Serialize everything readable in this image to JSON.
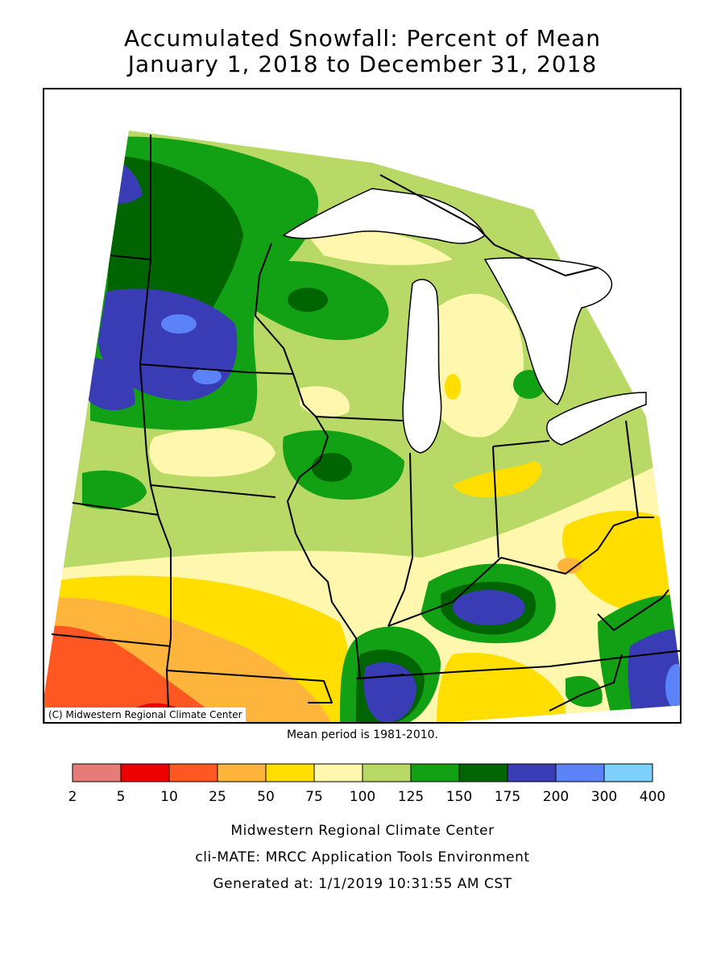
{
  "title": {
    "line1": "Accumulated Snowfall: Percent of Mean",
    "line2": "January 1, 2018 to December 31, 2018"
  },
  "map": {
    "copyright": "(C) Midwestern Regional Climate Center"
  },
  "mean_period": "Mean period is 1981-2010.",
  "legend": {
    "bins": [
      {
        "from": "2",
        "to": "5",
        "color": "#e67c77"
      },
      {
        "from": "5",
        "to": "10",
        "color": "#ee0000"
      },
      {
        "from": "10",
        "to": "25",
        "color": "#ff5722"
      },
      {
        "from": "25",
        "to": "50",
        "color": "#ffb43c"
      },
      {
        "from": "50",
        "to": "75",
        "color": "#ffde00"
      },
      {
        "from": "75",
        "to": "100",
        "color": "#fff7ad"
      },
      {
        "from": "100",
        "to": "125",
        "color": "#b8d966"
      },
      {
        "from": "125",
        "to": "150",
        "color": "#12a014"
      },
      {
        "from": "150",
        "to": "175",
        "color": "#006400"
      },
      {
        "from": "175",
        "to": "200",
        "color": "#3a3cb6"
      },
      {
        "from": "200",
        "to": "300",
        "color": "#5b83f7"
      },
      {
        "from": "300",
        "to": "400",
        "color": "#7dd0fb"
      }
    ],
    "ticks": [
      "2",
      "5",
      "10",
      "25",
      "50",
      "75",
      "100",
      "125",
      "150",
      "175",
      "200",
      "300",
      "400"
    ]
  },
  "footer": {
    "line1": "Midwestern Regional Climate Center",
    "line2": "cli-MATE: MRCC Application Tools Environment",
    "line3": "Generated at: 1/1/2019 10:31:55 AM CST"
  }
}
